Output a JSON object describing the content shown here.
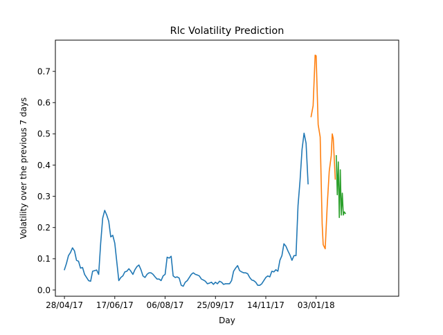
{
  "chart_data": {
    "type": "line",
    "title": "Rlc Volatility Prediction",
    "xlabel": "Day",
    "ylabel": "Volatility over the previous 7 days",
    "xlim": [
      "2017-04-19",
      "2018-03-26"
    ],
    "ylim": [
      -0.02,
      0.8
    ],
    "x_ticks": [
      {
        "date": "2017-04-28",
        "label": "28/04/17"
      },
      {
        "date": "2017-06-17",
        "label": "17/06/17"
      },
      {
        "date": "2017-08-06",
        "label": "06/08/17"
      },
      {
        "date": "2017-09-25",
        "label": "25/09/17"
      },
      {
        "date": "2017-11-14",
        "label": "14/11/17"
      },
      {
        "date": "2018-01-03",
        "label": "03/01/18"
      }
    ],
    "y_ticks": [
      0.0,
      0.1,
      0.2,
      0.3,
      0.4,
      0.5,
      0.6,
      0.7
    ],
    "y_tick_labels": [
      "0.0",
      "0.1",
      "0.2",
      "0.3",
      "0.4",
      "0.5",
      "0.6",
      "0.7"
    ],
    "grid": false,
    "legend": "none",
    "series": [
      {
        "color": "#1f77b4",
        "points": [
          [
            "2017-04-28",
            0.065
          ],
          [
            "2017-04-30",
            0.085
          ],
          [
            "2017-05-02",
            0.11
          ],
          [
            "2017-05-04",
            0.12
          ],
          [
            "2017-05-06",
            0.135
          ],
          [
            "2017-05-08",
            0.125
          ],
          [
            "2017-05-10",
            0.095
          ],
          [
            "2017-05-12",
            0.092
          ],
          [
            "2017-05-14",
            0.07
          ],
          [
            "2017-05-16",
            0.072
          ],
          [
            "2017-05-18",
            0.05
          ],
          [
            "2017-05-20",
            0.04
          ],
          [
            "2017-05-22",
            0.03
          ],
          [
            "2017-05-24",
            0.028
          ],
          [
            "2017-05-26",
            0.06
          ],
          [
            "2017-05-28",
            0.062
          ],
          [
            "2017-05-30",
            0.064
          ],
          [
            "2017-06-01",
            0.05
          ],
          [
            "2017-06-03",
            0.15
          ],
          [
            "2017-06-05",
            0.23
          ],
          [
            "2017-06-07",
            0.255
          ],
          [
            "2017-06-09",
            0.24
          ],
          [
            "2017-06-11",
            0.22
          ],
          [
            "2017-06-13",
            0.17
          ],
          [
            "2017-06-15",
            0.175
          ],
          [
            "2017-06-17",
            0.15
          ],
          [
            "2017-06-19",
            0.09
          ],
          [
            "2017-06-21",
            0.03
          ],
          [
            "2017-06-23",
            0.04
          ],
          [
            "2017-06-25",
            0.045
          ],
          [
            "2017-06-27",
            0.058
          ],
          [
            "2017-06-29",
            0.06
          ],
          [
            "2017-07-01",
            0.068
          ],
          [
            "2017-07-03",
            0.06
          ],
          [
            "2017-07-05",
            0.05
          ],
          [
            "2017-07-07",
            0.065
          ],
          [
            "2017-07-09",
            0.075
          ],
          [
            "2017-07-11",
            0.08
          ],
          [
            "2017-07-13",
            0.065
          ],
          [
            "2017-07-15",
            0.045
          ],
          [
            "2017-07-17",
            0.04
          ],
          [
            "2017-07-19",
            0.05
          ],
          [
            "2017-07-21",
            0.055
          ],
          [
            "2017-07-23",
            0.055
          ],
          [
            "2017-07-25",
            0.05
          ],
          [
            "2017-07-27",
            0.042
          ],
          [
            "2017-07-29",
            0.035
          ],
          [
            "2017-07-31",
            0.035
          ],
          [
            "2017-08-02",
            0.03
          ],
          [
            "2017-08-04",
            0.045
          ],
          [
            "2017-08-06",
            0.05
          ],
          [
            "2017-08-08",
            0.105
          ],
          [
            "2017-08-10",
            0.102
          ],
          [
            "2017-08-12",
            0.108
          ],
          [
            "2017-08-14",
            0.045
          ],
          [
            "2017-08-16",
            0.04
          ],
          [
            "2017-08-18",
            0.042
          ],
          [
            "2017-08-20",
            0.038
          ],
          [
            "2017-08-22",
            0.015
          ],
          [
            "2017-08-24",
            0.012
          ],
          [
            "2017-08-26",
            0.025
          ],
          [
            "2017-08-28",
            0.03
          ],
          [
            "2017-08-30",
            0.04
          ],
          [
            "2017-09-01",
            0.05
          ],
          [
            "2017-09-03",
            0.055
          ],
          [
            "2017-09-05",
            0.05
          ],
          [
            "2017-09-07",
            0.048
          ],
          [
            "2017-09-09",
            0.045
          ],
          [
            "2017-09-11",
            0.035
          ],
          [
            "2017-09-13",
            0.032
          ],
          [
            "2017-09-15",
            0.028
          ],
          [
            "2017-09-17",
            0.02
          ],
          [
            "2017-09-19",
            0.022
          ],
          [
            "2017-09-21",
            0.025
          ],
          [
            "2017-09-23",
            0.018
          ],
          [
            "2017-09-25",
            0.025
          ],
          [
            "2017-09-27",
            0.02
          ],
          [
            "2017-09-29",
            0.028
          ],
          [
            "2017-10-01",
            0.025
          ],
          [
            "2017-10-03",
            0.018
          ],
          [
            "2017-10-05",
            0.02
          ],
          [
            "2017-10-07",
            0.02
          ],
          [
            "2017-10-09",
            0.02
          ],
          [
            "2017-10-11",
            0.03
          ],
          [
            "2017-10-13",
            0.06
          ],
          [
            "2017-10-15",
            0.07
          ],
          [
            "2017-10-17",
            0.078
          ],
          [
            "2017-10-19",
            0.062
          ],
          [
            "2017-10-21",
            0.058
          ],
          [
            "2017-10-23",
            0.055
          ],
          [
            "2017-10-25",
            0.055
          ],
          [
            "2017-10-27",
            0.052
          ],
          [
            "2017-10-29",
            0.04
          ],
          [
            "2017-10-31",
            0.032
          ],
          [
            "2017-11-02",
            0.03
          ],
          [
            "2017-11-04",
            0.025
          ],
          [
            "2017-11-06",
            0.015
          ],
          [
            "2017-11-08",
            0.015
          ],
          [
            "2017-11-10",
            0.02
          ],
          [
            "2017-11-12",
            0.03
          ],
          [
            "2017-11-14",
            0.04
          ],
          [
            "2017-11-16",
            0.045
          ],
          [
            "2017-11-18",
            0.042
          ],
          [
            "2017-11-20",
            0.06
          ],
          [
            "2017-11-22",
            0.058
          ],
          [
            "2017-11-24",
            0.065
          ],
          [
            "2017-11-26",
            0.06
          ],
          [
            "2017-11-28",
            0.095
          ],
          [
            "2017-11-30",
            0.11
          ],
          [
            "2017-12-02",
            0.148
          ],
          [
            "2017-12-04",
            0.14
          ],
          [
            "2017-12-06",
            0.125
          ],
          [
            "2017-12-08",
            0.112
          ],
          [
            "2017-12-10",
            0.095
          ],
          [
            "2017-12-12",
            0.11
          ],
          [
            "2017-12-14",
            0.11
          ],
          [
            "2017-12-16",
            0.27
          ],
          [
            "2017-12-18",
            0.35
          ],
          [
            "2017-12-20",
            0.45
          ],
          [
            "2017-12-22",
            0.502
          ],
          [
            "2017-12-24",
            0.47
          ],
          [
            "2017-12-26",
            0.34
          ]
        ]
      },
      {
        "color": "#ff7f0e",
        "points": [
          [
            "2017-12-29",
            0.555
          ],
          [
            "2017-12-31",
            0.59
          ],
          [
            "2018-01-02",
            0.752
          ],
          [
            "2018-01-03",
            0.75
          ],
          [
            "2018-01-05",
            0.53
          ],
          [
            "2018-01-07",
            0.49
          ],
          [
            "2018-01-09",
            0.21
          ],
          [
            "2018-01-10",
            0.145
          ],
          [
            "2018-01-12",
            0.132
          ],
          [
            "2018-01-14",
            0.27
          ],
          [
            "2018-01-16",
            0.38
          ],
          [
            "2018-01-18",
            0.43
          ],
          [
            "2018-01-19",
            0.5
          ],
          [
            "2018-01-20",
            0.485
          ],
          [
            "2018-01-22",
            0.355
          ]
        ]
      },
      {
        "color": "#2ca02c",
        "points": [
          [
            "2018-01-23",
            0.43
          ],
          [
            "2018-01-24",
            0.305
          ],
          [
            "2018-01-25",
            0.41
          ],
          [
            "2018-01-26",
            0.232
          ],
          [
            "2018-01-27",
            0.385
          ],
          [
            "2018-01-28",
            0.24
          ],
          [
            "2018-01-29",
            0.31
          ],
          [
            "2018-01-30",
            0.24
          ],
          [
            "2018-01-31",
            0.25
          ],
          [
            "2018-02-01",
            0.245
          ]
        ]
      }
    ]
  }
}
